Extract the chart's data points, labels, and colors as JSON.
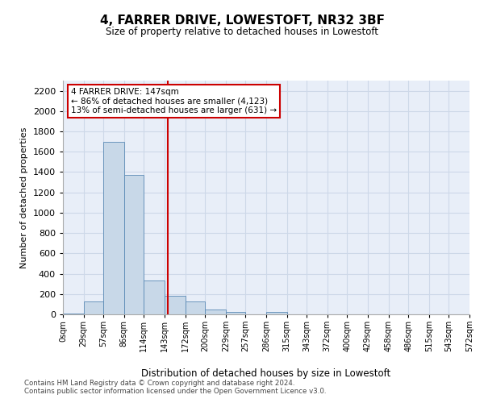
{
  "title": "4, FARRER DRIVE, LOWESTOFT, NR32 3BF",
  "subtitle": "Size of property relative to detached houses in Lowestoft",
  "xlabel": "Distribution of detached houses by size in Lowestoft",
  "ylabel": "Number of detached properties",
  "bin_labels": [
    "0sqm",
    "29sqm",
    "57sqm",
    "86sqm",
    "114sqm",
    "143sqm",
    "172sqm",
    "200sqm",
    "229sqm",
    "257sqm",
    "286sqm",
    "315sqm",
    "343sqm",
    "372sqm",
    "400sqm",
    "429sqm",
    "458sqm",
    "486sqm",
    "515sqm",
    "543sqm",
    "572sqm"
  ],
  "bar_heights": [
    5,
    125,
    1700,
    1375,
    330,
    185,
    130,
    50,
    25,
    0,
    25,
    0,
    0,
    0,
    0,
    0,
    0,
    0,
    0,
    0,
    0
  ],
  "bin_edges": [
    0,
    29,
    57,
    86,
    114,
    143,
    172,
    200,
    229,
    257,
    286,
    315,
    343,
    372,
    400,
    429,
    458,
    486,
    515,
    543,
    572
  ],
  "bar_color": "#c8d8e8",
  "bar_edge_color": "#5a8ab5",
  "property_value": 147,
  "vline_color": "#cc0000",
  "annotation_line1": "4 FARRER DRIVE: 147sqm",
  "annotation_line2": "← 86% of detached houses are smaller (4,123)",
  "annotation_line3": "13% of semi-detached houses are larger (631) →",
  "annotation_box_color": "#ffffff",
  "annotation_box_edge": "#cc0000",
  "ylim": [
    0,
    2300
  ],
  "yticks": [
    0,
    200,
    400,
    600,
    800,
    1000,
    1200,
    1400,
    1600,
    1800,
    2000,
    2200
  ],
  "grid_color": "#cdd8e8",
  "background_color": "#e8eef8",
  "footer": "Contains HM Land Registry data © Crown copyright and database right 2024.\nContains public sector information licensed under the Open Government Licence v3.0."
}
